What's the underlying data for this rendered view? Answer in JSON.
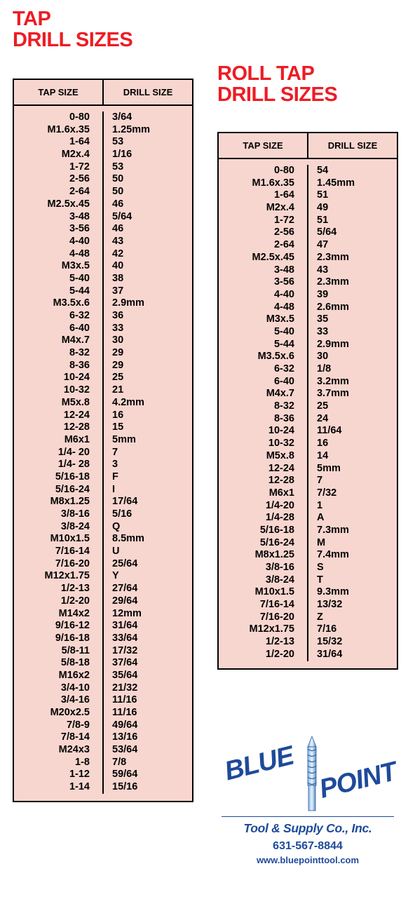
{
  "tap": {
    "title_line1": "TAP",
    "title_line2": "DRILL SIZES",
    "header_tap": "TAP SIZE",
    "header_drill": "DRILL SIZE",
    "rows": [
      {
        "t": "0-80",
        "d": "3/64"
      },
      {
        "t": "M1.6x.35",
        "d": "1.25mm"
      },
      {
        "t": "1-64",
        "d": "53"
      },
      {
        "t": "M2x.4",
        "d": "1/16"
      },
      {
        "t": "1-72",
        "d": "53"
      },
      {
        "t": "2-56",
        "d": "50"
      },
      {
        "t": "2-64",
        "d": "50"
      },
      {
        "t": "M2.5x.45",
        "d": "46"
      },
      {
        "t": "3-48",
        "d": "5/64"
      },
      {
        "t": "3-56",
        "d": "46"
      },
      {
        "t": "4-40",
        "d": "43"
      },
      {
        "t": "4-48",
        "d": "42"
      },
      {
        "t": "M3x.5",
        "d": "40"
      },
      {
        "t": "5-40",
        "d": "38"
      },
      {
        "t": "5-44",
        "d": "37"
      },
      {
        "t": "M3.5x.6",
        "d": "2.9mm"
      },
      {
        "t": "6-32",
        "d": "36"
      },
      {
        "t": "6-40",
        "d": "33"
      },
      {
        "t": "M4x.7",
        "d": "30"
      },
      {
        "t": "8-32",
        "d": "29"
      },
      {
        "t": "8-36",
        "d": "29"
      },
      {
        "t": "10-24",
        "d": "25"
      },
      {
        "t": "10-32",
        "d": "21"
      },
      {
        "t": "M5x.8",
        "d": "4.2mm"
      },
      {
        "t": "12-24",
        "d": "16"
      },
      {
        "t": "12-28",
        "d": "15"
      },
      {
        "t": "M6x1",
        "d": "5mm"
      },
      {
        "t": "1/4- 20",
        "d": "7"
      },
      {
        "t": "1/4- 28",
        "d": "3"
      },
      {
        "t": "5/16-18",
        "d": "F"
      },
      {
        "t": "5/16-24",
        "d": "I"
      },
      {
        "t": "M8x1.25",
        "d": "17/64"
      },
      {
        "t": "3/8-16",
        "d": "5/16"
      },
      {
        "t": "3/8-24",
        "d": "Q"
      },
      {
        "t": "M10x1.5",
        "d": "8.5mm"
      },
      {
        "t": "7/16-14",
        "d": "U"
      },
      {
        "t": "7/16-20",
        "d": "25/64"
      },
      {
        "t": "M12x1.75",
        "d": "Y"
      },
      {
        "t": "1/2-13",
        "d": "27/64"
      },
      {
        "t": "1/2-20",
        "d": "29/64"
      },
      {
        "t": "M14x2",
        "d": "12mm"
      },
      {
        "t": "9/16-12",
        "d": "31/64"
      },
      {
        "t": "9/16-18",
        "d": "33/64"
      },
      {
        "t": "5/8-11",
        "d": "17/32"
      },
      {
        "t": "5/8-18",
        "d": "37/64"
      },
      {
        "t": "M16x2",
        "d": "35/64"
      },
      {
        "t": "3/4-10",
        "d": "21/32"
      },
      {
        "t": "3/4-16",
        "d": "11/16"
      },
      {
        "t": "M20x2.5",
        "d": "11/16"
      },
      {
        "t": "7/8-9",
        "d": "49/64"
      },
      {
        "t": "7/8-14",
        "d": "13/16"
      },
      {
        "t": "M24x3",
        "d": "53/64"
      },
      {
        "t": "1-8",
        "d": "7/8"
      },
      {
        "t": "1-12",
        "d": "59/64"
      },
      {
        "t": "1-14",
        "d": "15/16"
      }
    ]
  },
  "roll": {
    "title_line1": "ROLL TAP",
    "title_line2": "DRILL SIZES",
    "header_tap": "TAP SIZE",
    "header_drill": "DRILL SIZE",
    "rows": [
      {
        "t": "0-80",
        "d": "54"
      },
      {
        "t": "M1.6x.35",
        "d": "1.45mm"
      },
      {
        "t": "1-64",
        "d": "51"
      },
      {
        "t": "M2x.4",
        "d": "49"
      },
      {
        "t": "1-72",
        "d": "51"
      },
      {
        "t": "2-56",
        "d": "5/64"
      },
      {
        "t": "2-64",
        "d": "47"
      },
      {
        "t": "M2.5x.45",
        "d": "2.3mm"
      },
      {
        "t": "3-48",
        "d": "43"
      },
      {
        "t": "3-56",
        "d": "2.3mm"
      },
      {
        "t": "4-40",
        "d": "39"
      },
      {
        "t": "4-48",
        "d": "2.6mm"
      },
      {
        "t": "M3x.5",
        "d": "35"
      },
      {
        "t": "5-40",
        "d": "33"
      },
      {
        "t": "5-44",
        "d": "2.9mm"
      },
      {
        "t": "M3.5x.6",
        "d": "30"
      },
      {
        "t": "6-32",
        "d": "1/8"
      },
      {
        "t": "6-40",
        "d": "3.2mm"
      },
      {
        "t": "M4x.7",
        "d": "3.7mm"
      },
      {
        "t": "8-32",
        "d": "25"
      },
      {
        "t": "8-36",
        "d": "24"
      },
      {
        "t": "10-24",
        "d": "11/64"
      },
      {
        "t": "10-32",
        "d": "16"
      },
      {
        "t": "M5x.8",
        "d": "14"
      },
      {
        "t": "12-24",
        "d": "5mm"
      },
      {
        "t": "12-28",
        "d": "7"
      },
      {
        "t": "M6x1",
        "d": "7/32"
      },
      {
        "t": "1/4-20",
        "d": "1"
      },
      {
        "t": "1/4-28",
        "d": "A"
      },
      {
        "t": "5/16-18",
        "d": "7.3mm"
      },
      {
        "t": "5/16-24",
        "d": "M"
      },
      {
        "t": "M8x1.25",
        "d": "7.4mm"
      },
      {
        "t": "3/8-16",
        "d": "S"
      },
      {
        "t": "3/8-24",
        "d": "T"
      },
      {
        "t": "M10x1.5",
        "d": "9.3mm"
      },
      {
        "t": "7/16-14",
        "d": "13/32"
      },
      {
        "t": "7/16-20",
        "d": "Z"
      },
      {
        "t": "M12x1.75",
        "d": "7/16"
      },
      {
        "t": "1/2-13",
        "d": "15/32"
      },
      {
        "t": "1/2-20",
        "d": "31/64"
      }
    ]
  },
  "logo": {
    "blue": "BLUE",
    "point": "POINT",
    "company": "Tool & Supply Co., Inc.",
    "phone": "631-567-8844",
    "url": "www.bluepointtool.com"
  },
  "colors": {
    "title": "#ed1c24",
    "table_bg": "#f7d6cf",
    "border": "#000000",
    "logo": "#1e4a9b",
    "text": "#000000"
  }
}
